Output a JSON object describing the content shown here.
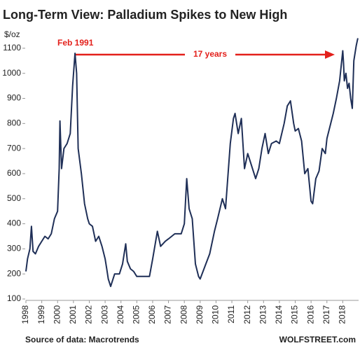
{
  "chart_data": {
    "type": "line",
    "title": "Long-Term View: Palladium Spikes to New High",
    "ylabel": "$/oz",
    "annotations": [
      "Feb 1991",
      "17 years"
    ],
    "source": "Source of data: Macrotrends",
    "watermark": "WOLFSTREET.com",
    "color": "#1f2f57",
    "annotation_color": "#e3201b",
    "x": [
      1998.0,
      1998.1,
      1998.25,
      1998.35,
      1998.45,
      1998.6,
      1998.8,
      1999.0,
      1999.2,
      1999.4,
      1999.6,
      1999.8,
      2000.0,
      2000.1,
      2000.15,
      2000.25,
      2000.4,
      2000.6,
      2000.8,
      2000.95,
      2001.1,
      2001.2,
      2001.3,
      2001.5,
      2001.7,
      2001.9,
      2002.0,
      2002.2,
      2002.4,
      2002.6,
      2002.8,
      2003.0,
      2003.1,
      2003.2,
      2003.35,
      2003.6,
      2003.9,
      2004.1,
      2004.3,
      2004.4,
      2004.6,
      2004.8,
      2005.0,
      2005.4,
      2005.8,
      2006.0,
      2006.3,
      2006.5,
      2006.8,
      2007.0,
      2007.4,
      2007.8,
      2008.0,
      2008.15,
      2008.3,
      2008.5,
      2008.7,
      2008.9,
      2009.0,
      2009.3,
      2009.6,
      2009.9,
      2010.1,
      2010.4,
      2010.6,
      2010.9,
      2011.1,
      2011.2,
      2011.4,
      2011.6,
      2011.8,
      2012.0,
      2012.3,
      2012.5,
      2012.7,
      2012.9,
      2013.1,
      2013.3,
      2013.5,
      2013.8,
      2014.0,
      2014.3,
      2014.5,
      2014.7,
      2014.9,
      2015.0,
      2015.2,
      2015.4,
      2015.6,
      2015.8,
      2016.0,
      2016.1,
      2016.3,
      2016.5,
      2016.7,
      2016.9,
      2017.0,
      2017.2,
      2017.4,
      2017.6,
      2017.8,
      2018.0,
      2018.05,
      2018.1,
      2018.2,
      2018.3,
      2018.4,
      2018.5,
      2018.6,
      2018.7,
      2018.85,
      2018.95
    ],
    "values": [
      210,
      260,
      300,
      390,
      290,
      280,
      310,
      330,
      350,
      340,
      360,
      420,
      450,
      620,
      810,
      620,
      700,
      720,
      760,
      950,
      1080,
      1000,
      700,
      600,
      480,
      420,
      400,
      390,
      330,
      350,
      310,
      260,
      220,
      180,
      150,
      200,
      200,
      240,
      320,
      250,
      220,
      210,
      190,
      190,
      190,
      260,
      370,
      310,
      330,
      340,
      360,
      360,
      400,
      580,
      460,
      420,
      240,
      190,
      180,
      230,
      280,
      370,
      420,
      500,
      460,
      720,
      820,
      840,
      760,
      820,
      620,
      680,
      620,
      580,
      620,
      700,
      760,
      680,
      720,
      730,
      720,
      800,
      870,
      890,
      800,
      770,
      780,
      730,
      600,
      620,
      490,
      480,
      580,
      610,
      700,
      680,
      740,
      790,
      840,
      900,
      970,
      1090,
      1040,
      970,
      1000,
      940,
      960,
      900,
      860,
      1050,
      1110,
      1140
    ],
    "xlim": [
      1998,
      2019
    ],
    "xticks": [
      1998,
      1999,
      2000,
      2001,
      2002,
      2003,
      2004,
      2005,
      2006,
      2007,
      2008,
      2009,
      2010,
      2011,
      2012,
      2013,
      2014,
      2015,
      2016,
      2017,
      2018
    ],
    "ylim": [
      100,
      1150
    ],
    "yticks": [
      100,
      200,
      300,
      400,
      500,
      600,
      700,
      800,
      900,
      1000,
      1100
    ]
  }
}
